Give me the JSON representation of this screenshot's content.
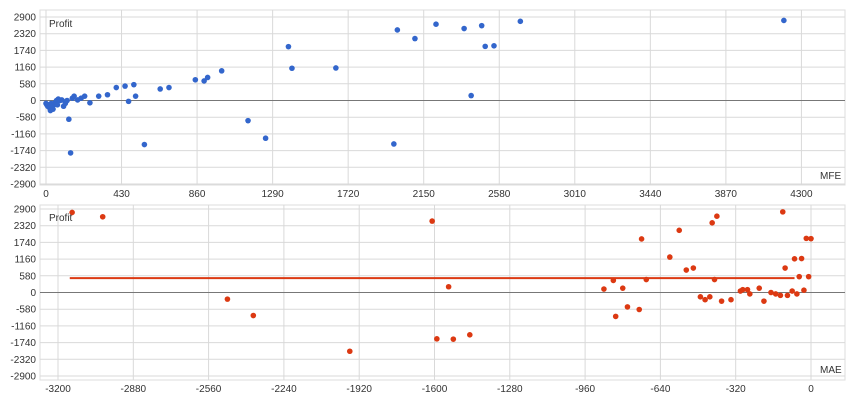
{
  "colors": {
    "grid": "#d9d9d9",
    "axis": "#777777",
    "mfe_points": "#3366cc",
    "mae_points": "#dc3912",
    "mae_line": "#dc3912",
    "text": "#333333"
  },
  "chart_data": [
    {
      "type": "scatter",
      "title": "Profit",
      "xlabel": "MFE",
      "ylabel": "Profit",
      "xlim": [
        0,
        4400
      ],
      "ylim": [
        -2900,
        2900
      ],
      "x_ticks": [
        "0",
        "430",
        "860",
        "1290",
        "1720",
        "2150",
        "2580",
        "3010",
        "3440",
        "3870",
        "4300"
      ],
      "y_ticks": [
        "2900",
        "2320",
        "1740",
        "1160",
        "580",
        "0",
        "-580",
        "-1160",
        "-1740",
        "-2320",
        "-2900"
      ],
      "grid": true,
      "points": [
        [
          0,
          -100
        ],
        [
          5,
          -150
        ],
        [
          10,
          -200
        ],
        [
          15,
          -150
        ],
        [
          20,
          -250
        ],
        [
          25,
          -350
        ],
        [
          30,
          -100
        ],
        [
          35,
          -200
        ],
        [
          40,
          -300
        ],
        [
          45,
          -150
        ],
        [
          50,
          -100
        ],
        [
          55,
          -50
        ],
        [
          60,
          0
        ],
        [
          65,
          -150
        ],
        [
          70,
          50
        ],
        [
          80,
          0
        ],
        [
          90,
          20
        ],
        [
          100,
          -200
        ],
        [
          110,
          -100
        ],
        [
          120,
          0
        ],
        [
          130,
          -650
        ],
        [
          140,
          -1820
        ],
        [
          150,
          80
        ],
        [
          160,
          150
        ],
        [
          180,
          20
        ],
        [
          200,
          80
        ],
        [
          220,
          150
        ],
        [
          250,
          -80
        ],
        [
          300,
          150
        ],
        [
          350,
          200
        ],
        [
          400,
          450
        ],
        [
          450,
          500
        ],
        [
          470,
          -30
        ],
        [
          500,
          550
        ],
        [
          510,
          150
        ],
        [
          560,
          -1530
        ],
        [
          650,
          400
        ],
        [
          700,
          450
        ],
        [
          850,
          720
        ],
        [
          900,
          680
        ],
        [
          920,
          800
        ],
        [
          1000,
          1030
        ],
        [
          1150,
          -700
        ],
        [
          1250,
          -1310
        ],
        [
          1380,
          1870
        ],
        [
          1400,
          1120
        ],
        [
          1650,
          1130
        ],
        [
          1980,
          -1510
        ],
        [
          2000,
          2450
        ],
        [
          2100,
          2150
        ],
        [
          2220,
          2650
        ],
        [
          2380,
          2500
        ],
        [
          2420,
          170
        ],
        [
          2480,
          2600
        ],
        [
          2500,
          1880
        ],
        [
          2550,
          1900
        ],
        [
          2700,
          2750
        ],
        [
          4200,
          2780
        ]
      ]
    },
    {
      "type": "scatter",
      "title": "Profit",
      "xlabel": "MAE",
      "ylabel": "Profit",
      "xlim": [
        -3200,
        0
      ],
      "ylim": [
        -2900,
        2900
      ],
      "x_ticks": [
        "-3200",
        "-2880",
        "-2560",
        "-2240",
        "-1920",
        "-1600",
        "-1280",
        "-960",
        "-640",
        "-320",
        "0"
      ],
      "y_ticks": [
        "2900",
        "2320",
        "1740",
        "1160",
        "580",
        "0",
        "-580",
        "-1160",
        "-1740",
        "-2320",
        "-2900"
      ],
      "grid": true,
      "trend_line": [
        [
          -3150,
          500
        ],
        [
          -70,
          500
        ]
      ],
      "points": [
        [
          -3140,
          2780
        ],
        [
          -3010,
          2630
        ],
        [
          -2480,
          -230
        ],
        [
          -2370,
          -800
        ],
        [
          -1960,
          -2040
        ],
        [
          -1610,
          2480
        ],
        [
          -1590,
          -1610
        ],
        [
          -1540,
          200
        ],
        [
          -1520,
          -1620
        ],
        [
          -1450,
          -1470
        ],
        [
          -880,
          120
        ],
        [
          -840,
          420
        ],
        [
          -830,
          -830
        ],
        [
          -800,
          150
        ],
        [
          -780,
          -500
        ],
        [
          -730,
          -590
        ],
        [
          -720,
          1860
        ],
        [
          -700,
          450
        ],
        [
          -600,
          1230
        ],
        [
          -560,
          2160
        ],
        [
          -530,
          780
        ],
        [
          -500,
          850
        ],
        [
          -470,
          -150
        ],
        [
          -450,
          -250
        ],
        [
          -430,
          -150
        ],
        [
          -420,
          2420
        ],
        [
          -410,
          450
        ],
        [
          -400,
          2650
        ],
        [
          -380,
          -300
        ],
        [
          -340,
          -250
        ],
        [
          -300,
          50
        ],
        [
          -290,
          100
        ],
        [
          -270,
          100
        ],
        [
          -260,
          -50
        ],
        [
          -220,
          150
        ],
        [
          -200,
          -300
        ],
        [
          -170,
          0
        ],
        [
          -150,
          -50
        ],
        [
          -130,
          -100
        ],
        [
          -120,
          2800
        ],
        [
          -110,
          850
        ],
        [
          -100,
          -100
        ],
        [
          -80,
          50
        ],
        [
          -70,
          1170
        ],
        [
          -60,
          -50
        ],
        [
          -50,
          550
        ],
        [
          -40,
          1180
        ],
        [
          -30,
          80
        ],
        [
          -20,
          1880
        ],
        [
          -10,
          550
        ],
        [
          0,
          1870
        ]
      ]
    }
  ]
}
